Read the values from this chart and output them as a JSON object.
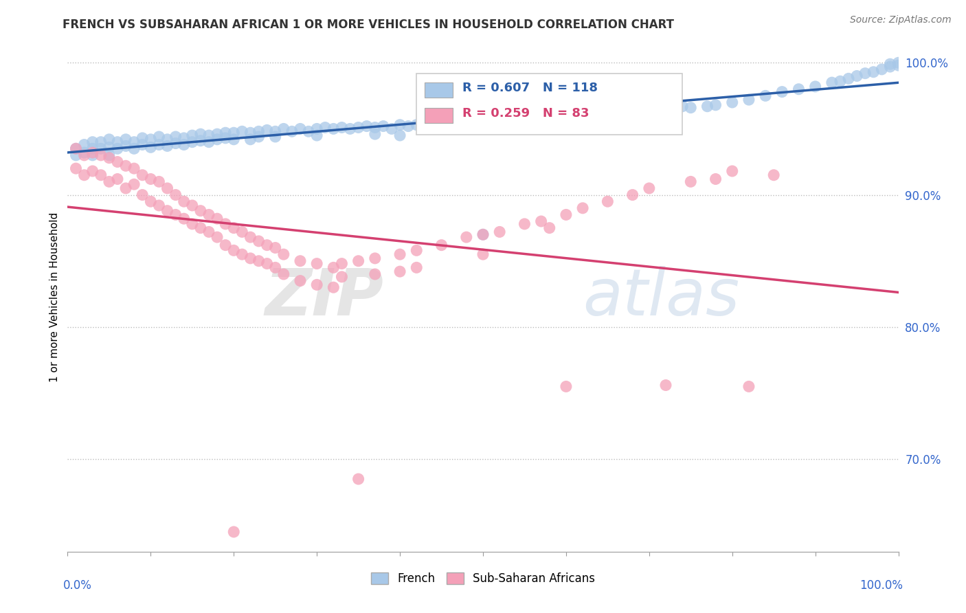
{
  "title": "FRENCH VS SUBSAHARAN AFRICAN 1 OR MORE VEHICLES IN HOUSEHOLD CORRELATION CHART",
  "source": "Source: ZipAtlas.com",
  "ylabel": "1 or more Vehicles in Household",
  "xmin": 0.0,
  "xmax": 1.0,
  "ymin": 0.63,
  "ymax": 1.015,
  "ytick_labels": [
    "70.0%",
    "80.0%",
    "90.0%",
    "100.0%"
  ],
  "ytick_values": [
    0.7,
    0.8,
    0.9,
    1.0
  ],
  "blue_color": "#a8c8e8",
  "blue_line_color": "#2c5fa8",
  "pink_color": "#f4a0b8",
  "pink_line_color": "#d44070",
  "R_blue": 0.607,
  "N_blue": 118,
  "R_pink": 0.259,
  "N_pink": 83,
  "legend_label_blue": "French",
  "legend_label_pink": "Sub-Saharan Africans",
  "background_color": "#ffffff",
  "watermark_zip": "ZIP",
  "watermark_atlas": "atlas",
  "blue_scatter": [
    [
      0.01,
      0.935
    ],
    [
      0.01,
      0.93
    ],
    [
      0.02,
      0.938
    ],
    [
      0.02,
      0.932
    ],
    [
      0.03,
      0.94
    ],
    [
      0.03,
      0.935
    ],
    [
      0.03,
      0.93
    ],
    [
      0.04,
      0.94
    ],
    [
      0.04,
      0.935
    ],
    [
      0.05,
      0.942
    ],
    [
      0.05,
      0.936
    ],
    [
      0.05,
      0.93
    ],
    [
      0.06,
      0.94
    ],
    [
      0.06,
      0.935
    ],
    [
      0.07,
      0.942
    ],
    [
      0.07,
      0.937
    ],
    [
      0.08,
      0.94
    ],
    [
      0.08,
      0.935
    ],
    [
      0.09,
      0.943
    ],
    [
      0.09,
      0.938
    ],
    [
      0.1,
      0.942
    ],
    [
      0.1,
      0.936
    ],
    [
      0.11,
      0.944
    ],
    [
      0.11,
      0.938
    ],
    [
      0.12,
      0.942
    ],
    [
      0.12,
      0.937
    ],
    [
      0.13,
      0.944
    ],
    [
      0.13,
      0.939
    ],
    [
      0.14,
      0.943
    ],
    [
      0.14,
      0.938
    ],
    [
      0.15,
      0.945
    ],
    [
      0.15,
      0.94
    ],
    [
      0.16,
      0.946
    ],
    [
      0.16,
      0.941
    ],
    [
      0.17,
      0.945
    ],
    [
      0.17,
      0.94
    ],
    [
      0.18,
      0.946
    ],
    [
      0.18,
      0.942
    ],
    [
      0.19,
      0.947
    ],
    [
      0.19,
      0.943
    ],
    [
      0.2,
      0.947
    ],
    [
      0.2,
      0.942
    ],
    [
      0.21,
      0.948
    ],
    [
      0.22,
      0.947
    ],
    [
      0.22,
      0.942
    ],
    [
      0.23,
      0.948
    ],
    [
      0.23,
      0.944
    ],
    [
      0.24,
      0.949
    ],
    [
      0.25,
      0.948
    ],
    [
      0.25,
      0.944
    ],
    [
      0.26,
      0.95
    ],
    [
      0.27,
      0.948
    ],
    [
      0.28,
      0.95
    ],
    [
      0.29,
      0.948
    ],
    [
      0.3,
      0.95
    ],
    [
      0.3,
      0.945
    ],
    [
      0.31,
      0.951
    ],
    [
      0.32,
      0.95
    ],
    [
      0.33,
      0.951
    ],
    [
      0.34,
      0.95
    ],
    [
      0.35,
      0.951
    ],
    [
      0.36,
      0.952
    ],
    [
      0.37,
      0.951
    ],
    [
      0.37,
      0.946
    ],
    [
      0.38,
      0.952
    ],
    [
      0.39,
      0.95
    ],
    [
      0.4,
      0.953
    ],
    [
      0.4,
      0.945
    ],
    [
      0.41,
      0.952
    ],
    [
      0.42,
      0.953
    ],
    [
      0.43,
      0.952
    ],
    [
      0.44,
      0.953
    ],
    [
      0.45,
      0.954
    ],
    [
      0.46,
      0.953
    ],
    [
      0.47,
      0.954
    ],
    [
      0.48,
      0.954
    ],
    [
      0.49,
      0.955
    ],
    [
      0.5,
      0.954
    ],
    [
      0.5,
      0.87
    ],
    [
      0.51,
      0.955
    ],
    [
      0.52,
      0.955
    ],
    [
      0.53,
      0.956
    ],
    [
      0.54,
      0.955
    ],
    [
      0.55,
      0.956
    ],
    [
      0.56,
      0.96
    ],
    [
      0.57,
      0.958
    ],
    [
      0.58,
      0.96
    ],
    [
      0.59,
      0.959
    ],
    [
      0.6,
      0.96
    ],
    [
      0.61,
      0.965
    ],
    [
      0.62,
      0.96
    ],
    [
      0.63,
      0.964
    ],
    [
      0.64,
      0.965
    ],
    [
      0.65,
      0.96
    ],
    [
      0.66,
      0.965
    ],
    [
      0.68,
      0.965
    ],
    [
      0.7,
      0.965
    ],
    [
      0.72,
      0.966
    ],
    [
      0.74,
      0.967
    ],
    [
      0.75,
      0.966
    ],
    [
      0.77,
      0.967
    ],
    [
      0.78,
      0.968
    ],
    [
      0.8,
      0.97
    ],
    [
      0.82,
      0.972
    ],
    [
      0.84,
      0.975
    ],
    [
      0.86,
      0.978
    ],
    [
      0.88,
      0.98
    ],
    [
      0.9,
      0.982
    ],
    [
      0.92,
      0.985
    ],
    [
      0.93,
      0.986
    ],
    [
      0.94,
      0.988
    ],
    [
      0.95,
      0.99
    ],
    [
      0.96,
      0.992
    ],
    [
      0.97,
      0.993
    ],
    [
      0.98,
      0.995
    ],
    [
      0.99,
      0.997
    ],
    [
      1.0,
      0.998
    ],
    [
      1.0,
      1.0
    ],
    [
      0.99,
      0.999
    ]
  ],
  "pink_scatter": [
    [
      0.01,
      0.935
    ],
    [
      0.01,
      0.92
    ],
    [
      0.02,
      0.93
    ],
    [
      0.02,
      0.915
    ],
    [
      0.03,
      0.932
    ],
    [
      0.03,
      0.918
    ],
    [
      0.04,
      0.93
    ],
    [
      0.04,
      0.915
    ],
    [
      0.05,
      0.928
    ],
    [
      0.05,
      0.91
    ],
    [
      0.06,
      0.925
    ],
    [
      0.06,
      0.912
    ],
    [
      0.07,
      0.922
    ],
    [
      0.07,
      0.905
    ],
    [
      0.08,
      0.92
    ],
    [
      0.08,
      0.908
    ],
    [
      0.09,
      0.915
    ],
    [
      0.09,
      0.9
    ],
    [
      0.1,
      0.912
    ],
    [
      0.1,
      0.895
    ],
    [
      0.11,
      0.91
    ],
    [
      0.11,
      0.892
    ],
    [
      0.12,
      0.905
    ],
    [
      0.12,
      0.888
    ],
    [
      0.13,
      0.9
    ],
    [
      0.13,
      0.885
    ],
    [
      0.14,
      0.895
    ],
    [
      0.14,
      0.882
    ],
    [
      0.15,
      0.892
    ],
    [
      0.15,
      0.878
    ],
    [
      0.16,
      0.888
    ],
    [
      0.16,
      0.875
    ],
    [
      0.17,
      0.885
    ],
    [
      0.17,
      0.872
    ],
    [
      0.18,
      0.882
    ],
    [
      0.18,
      0.868
    ],
    [
      0.19,
      0.878
    ],
    [
      0.19,
      0.862
    ],
    [
      0.2,
      0.875
    ],
    [
      0.2,
      0.858
    ],
    [
      0.21,
      0.872
    ],
    [
      0.21,
      0.855
    ],
    [
      0.22,
      0.868
    ],
    [
      0.22,
      0.852
    ],
    [
      0.23,
      0.865
    ],
    [
      0.23,
      0.85
    ],
    [
      0.24,
      0.862
    ],
    [
      0.24,
      0.848
    ],
    [
      0.25,
      0.86
    ],
    [
      0.25,
      0.845
    ],
    [
      0.26,
      0.855
    ],
    [
      0.26,
      0.84
    ],
    [
      0.28,
      0.85
    ],
    [
      0.28,
      0.835
    ],
    [
      0.3,
      0.848
    ],
    [
      0.3,
      0.832
    ],
    [
      0.32,
      0.845
    ],
    [
      0.32,
      0.83
    ],
    [
      0.33,
      0.848
    ],
    [
      0.33,
      0.838
    ],
    [
      0.35,
      0.85
    ],
    [
      0.35,
      0.685
    ],
    [
      0.37,
      0.852
    ],
    [
      0.37,
      0.84
    ],
    [
      0.4,
      0.855
    ],
    [
      0.4,
      0.842
    ],
    [
      0.42,
      0.858
    ],
    [
      0.42,
      0.845
    ],
    [
      0.45,
      0.862
    ],
    [
      0.48,
      0.868
    ],
    [
      0.5,
      0.87
    ],
    [
      0.5,
      0.855
    ],
    [
      0.52,
      0.872
    ],
    [
      0.55,
      0.878
    ],
    [
      0.57,
      0.88
    ],
    [
      0.58,
      0.875
    ],
    [
      0.6,
      0.885
    ],
    [
      0.6,
      0.755
    ],
    [
      0.62,
      0.89
    ],
    [
      0.65,
      0.895
    ],
    [
      0.68,
      0.9
    ],
    [
      0.7,
      0.905
    ],
    [
      0.72,
      0.756
    ],
    [
      0.75,
      0.91
    ],
    [
      0.78,
      0.912
    ],
    [
      0.8,
      0.918
    ],
    [
      0.82,
      0.755
    ],
    [
      0.85,
      0.915
    ],
    [
      0.2,
      0.645
    ]
  ]
}
